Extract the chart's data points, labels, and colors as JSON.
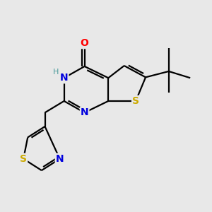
{
  "background_color": "#e8e8e8",
  "atom_colors": {
    "N": "#0000dd",
    "O": "#ff0000",
    "S": "#ccaa00",
    "H": "#4a9a9a",
    "C": "#000000"
  },
  "bond_color": "#000000",
  "bond_width": 1.6,
  "figsize": [
    3.0,
    3.0
  ],
  "dpi": 100
}
